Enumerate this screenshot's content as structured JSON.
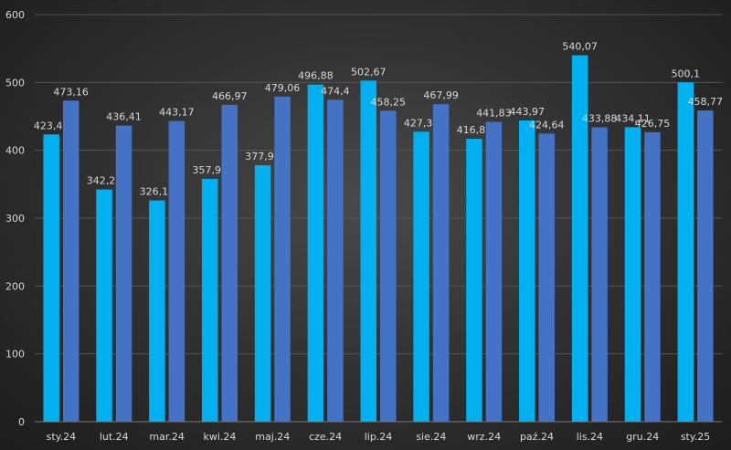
{
  "chart_data": {
    "type": "bar",
    "categories": [
      "sty.24",
      "lut.24",
      "mar.24",
      "kwi.24",
      "maj.24",
      "cze.24",
      "lip.24",
      "sie.24",
      "wrz.24",
      "paź.24",
      "lis.24",
      "gru.24",
      "sty.25"
    ],
    "series": [
      {
        "values": [
          423.41,
          342.27,
          326.17,
          357.93,
          377.98,
          496.88,
          502.67,
          427.39,
          416.83,
          443.97,
          540.07,
          434.11,
          500.1
        ],
        "labels": [
          "423,41",
          "342,27",
          "326,17",
          "357,93",
          "377,98",
          "496,88",
          "502,67",
          "427,39",
          "416,83",
          "443,97",
          "540,07",
          "434,11",
          "500,1"
        ],
        "color": "#00b0f0"
      },
      {
        "values": [
          473.16,
          436.41,
          443.17,
          466.97,
          479.06,
          474.4,
          458.25,
          467.99,
          441.83,
          424.64,
          433.88,
          426.75,
          458.77
        ],
        "labels": [
          "473,16",
          "436,41",
          "443,17",
          "466,97",
          "479,06",
          "474,4",
          "458,25",
          "467,99",
          "441,83",
          "424,64",
          "433,88",
          "426,75",
          "458,77"
        ],
        "color": "#4472c4"
      }
    ],
    "ylim": [
      0,
      600
    ],
    "yticks": [
      "0",
      "100",
      "200",
      "300",
      "400",
      "500",
      "600"
    ],
    "grid": true,
    "legend": "none"
  }
}
